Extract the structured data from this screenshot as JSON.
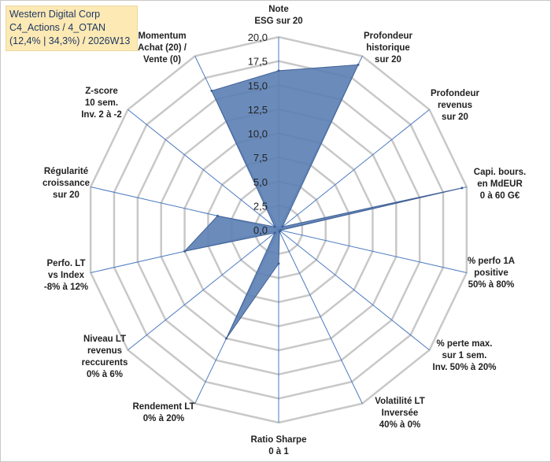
{
  "title_box": {
    "line1": "Western Digital Corp",
    "line2": "C4_Actions / 4_OTAN",
    "line3": "(12,4% | 34,3%) / 2026W13"
  },
  "colors": {
    "fill": "#5b7fb4",
    "stroke": "#3f5f94",
    "grid": "#c8c8c8",
    "spoke": "#4a7ac0",
    "title_bg": "#fde9b3"
  },
  "chart_data": {
    "type": "radar",
    "rmin": 0,
    "rmax": 20,
    "ticks": [
      "0,0",
      "2,5",
      "5,0",
      "7,5",
      "10,0",
      "12,5",
      "15,0",
      "17,5",
      "20,0"
    ],
    "tick_values": [
      0,
      2.5,
      5,
      7.5,
      10,
      12.5,
      15,
      17.5,
      20
    ],
    "categories": [
      [
        "Note",
        "ESG sur 20"
      ],
      [
        "Profondeur",
        "historique",
        "sur 20"
      ],
      [
        "Profondeur",
        "revenus",
        "sur 20"
      ],
      [
        "Capi. bours.",
        "en MdEUR",
        "0 à 60 G€"
      ],
      [
        "% perfo 1A",
        "positive",
        "50% à 80%"
      ],
      [
        "% perte max.",
        "sur 1 sem.",
        "Inv. 50% à 20%"
      ],
      [
        "Volatilité LT",
        "Inversée",
        "40% à 0%"
      ],
      [
        "Ratio Sharpe",
        "0 à 1"
      ],
      [
        "Rendement LT",
        "0% à 20%"
      ],
      [
        "Niveau LT",
        "revenus",
        "reccurents",
        "0% à 6%"
      ],
      [
        "Perfo. LT",
        "vs Index",
        "-8% à 12%"
      ],
      [
        "Régularité",
        "croissance",
        "sur 20"
      ],
      [
        "Z-score",
        "10 sem.",
        "Inv. 2 à -2"
      ],
      [
        "Momentum",
        "Achat (20) /",
        "Vente (0)"
      ]
    ],
    "values": [
      16.5,
      19,
      0.5,
      19.5,
      0.2,
      0.2,
      0.2,
      3.5,
      12.5,
      0.5,
      10,
      6.5,
      0.5,
      16
    ]
  }
}
